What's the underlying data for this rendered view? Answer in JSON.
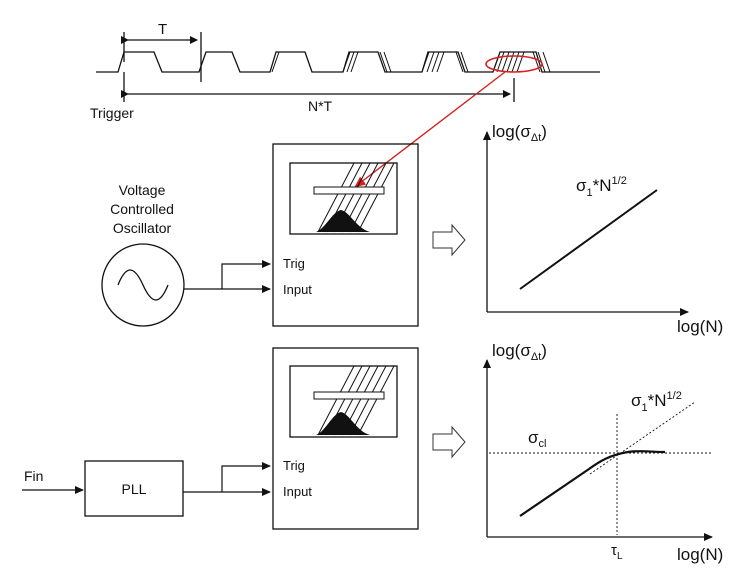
{
  "timing": {
    "period_label": "T",
    "span_label": "N*T",
    "trigger_label": "Trigger"
  },
  "vco": {
    "line1": "Voltage",
    "line2": "Controlled",
    "line3": "Oscillator"
  },
  "scope_top": {
    "trig": "Trig",
    "input": "Input"
  },
  "scope_bottom": {
    "trig": "Trig",
    "input": "Input"
  },
  "pll": {
    "label": "PLL",
    "fin": "Fin"
  },
  "graph_top": {
    "ylabel_log": "log(",
    "ylabel_sigma": "σ",
    "ylabel_sub": "Δt",
    "ylabel_close": ")",
    "xlabel": "log(N)",
    "curve_sigma": "σ",
    "curve_sub": "1",
    "curve_rest": "*N",
    "curve_sup": "1/2"
  },
  "graph_bottom": {
    "ylabel_log": "log(",
    "ylabel_sigma": "σ",
    "ylabel_sub": "Δt",
    "ylabel_close": ")",
    "xlabel": "log(N)",
    "curve_sigma": "σ",
    "curve_sub": "1",
    "curve_rest": "*N",
    "curve_sup": "1/2",
    "level_sigma": "σ",
    "level_sub": "cl",
    "tau": "τ",
    "tau_sub": "L"
  },
  "colors": {
    "line": "#111111",
    "accent": "#d62020"
  }
}
